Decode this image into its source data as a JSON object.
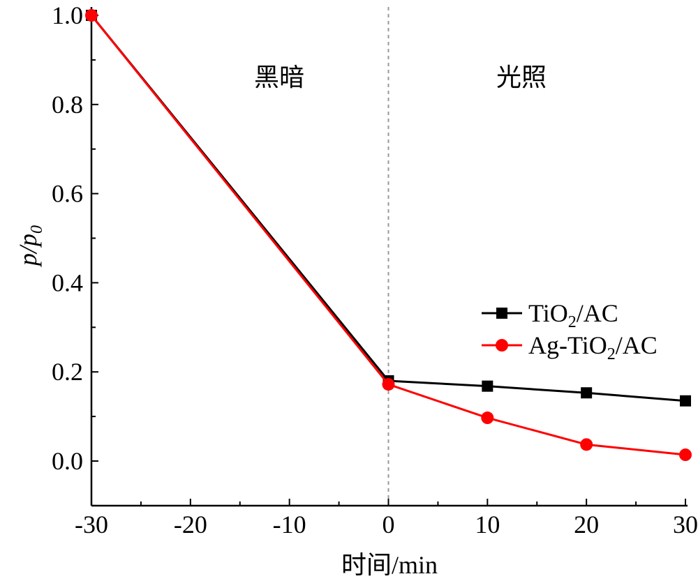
{
  "chart_data": {
    "type": "line",
    "xlabel": "时间/min",
    "ylabel": "p/p0",
    "ylabel_main": "p/p",
    "ylabel_sub": "0",
    "xlim": [
      -30,
      30
    ],
    "ylim": [
      -0.1,
      1.0
    ],
    "xticks": [
      -30,
      -20,
      -10,
      0,
      10,
      20,
      30
    ],
    "xtick_labels": [
      "-30",
      "-20",
      "-10",
      "0",
      "10",
      "20",
      "30"
    ],
    "yticks": [
      0.0,
      0.2,
      0.4,
      0.6,
      0.8,
      1.0
    ],
    "ytick_labels": [
      "0.0",
      "0.2",
      "0.4",
      "0.6",
      "0.8",
      "1.0"
    ],
    "x": [
      -30,
      0,
      10,
      20,
      30
    ],
    "series": [
      {
        "name": "TiO2/AC",
        "name_main": "TiO",
        "name_sub": "2",
        "name_rest": "/AC",
        "marker": "square",
        "color": "#000000",
        "values": [
          1.0,
          0.18,
          0.168,
          0.153,
          0.135
        ]
      },
      {
        "name": "Ag-TiO2/AC",
        "name_main": "Ag-TiO",
        "name_sub": "2",
        "name_rest": "/AC",
        "marker": "circle",
        "color": "#ff0000",
        "values": [
          1.0,
          0.172,
          0.097,
          0.037,
          0.014
        ]
      }
    ],
    "annotations": [
      "黑暗",
      "光照"
    ],
    "divider_x": 0,
    "legend_position": "right"
  }
}
